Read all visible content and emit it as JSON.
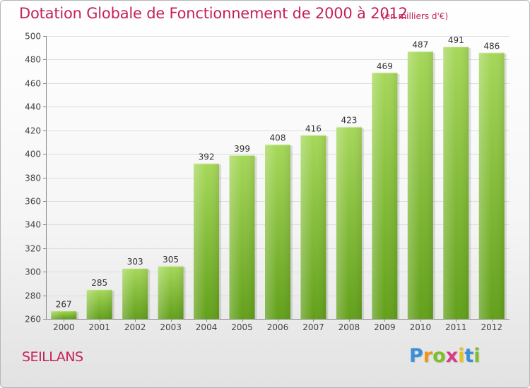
{
  "chart_data": {
    "type": "bar",
    "title": "Dotation Globale de Fonctionnement de 2000 à 2012",
    "subtitle": "(en milliers d'€)",
    "categories": [
      "2000",
      "2001",
      "2002",
      "2003",
      "2004",
      "2005",
      "2006",
      "2007",
      "2008",
      "2009",
      "2010",
      "2011",
      "2012"
    ],
    "values": [
      267,
      285,
      303,
      305,
      392,
      399,
      408,
      416,
      423,
      469,
      487,
      491,
      486
    ],
    "ylim": [
      260,
      500
    ],
    "yticks": [
      260,
      280,
      300,
      320,
      340,
      360,
      380,
      400,
      420,
      440,
      460,
      480,
      500
    ],
    "grid": true,
    "legend": "none",
    "bar_color_top": "#a6d85a",
    "bar_color_bottom": "#62a01a"
  },
  "commune": "SEILLANS",
  "logo": {
    "text": "Proxiti",
    "letters": [
      {
        "char": "P",
        "color": "#3a8fd6"
      },
      {
        "char": "r",
        "color": "#e8961c"
      },
      {
        "char": "o",
        "color": "#7cbf2a"
      },
      {
        "char": "x",
        "color": "#d83a8a"
      },
      {
        "char": "i",
        "color": "#e8c21c"
      },
      {
        "char": "t",
        "color": "#3a8fd6"
      },
      {
        "char": "i",
        "color": "#7cbf2a"
      }
    ]
  }
}
